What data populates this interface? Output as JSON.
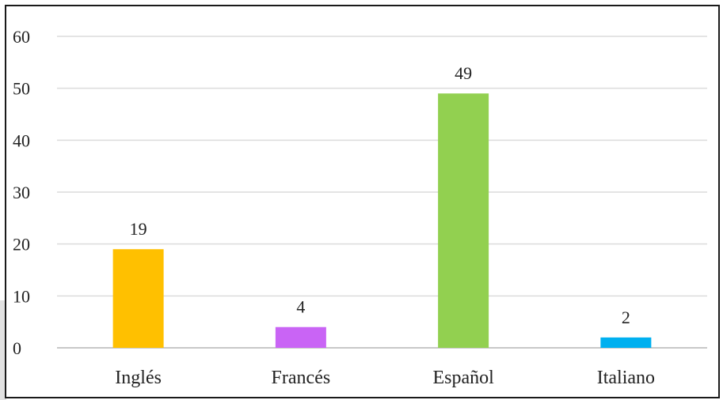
{
  "chart_data": {
    "type": "bar",
    "categories": [
      "Inglés",
      "Francés",
      "Español",
      "Italiano"
    ],
    "values": [
      19,
      4,
      49,
      2
    ],
    "colors": [
      "#ffc000",
      "#c964f5",
      "#92d050",
      "#00b0f0"
    ],
    "yticks": [
      0,
      10,
      20,
      30,
      40,
      50,
      60
    ],
    "ylim": [
      0,
      60
    ],
    "grid": true,
    "data_labels": true
  }
}
